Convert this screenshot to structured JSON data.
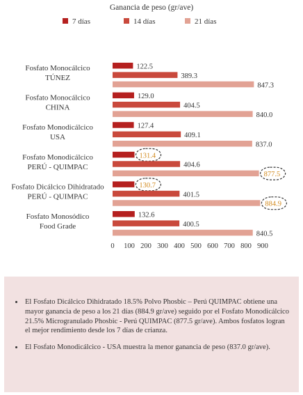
{
  "chart_data": {
    "type": "bar",
    "orientation": "horizontal",
    "title": "Ganancia de peso (gr/ave)",
    "categories": [
      [
        "Fosfato Monocálcico",
        "TÚNEZ"
      ],
      [
        "Fosfato Monocálcico",
        "CHINA"
      ],
      [
        "Fosfato Monodicálcico",
        "USA"
      ],
      [
        "Fosfato Monodicálcico",
        "PERÚ - QUIMPAC"
      ],
      [
        "Fosfato Dicálcico Dihidratado",
        "PERÚ - QUIMPAC"
      ],
      [
        "Fosfato Monosódico",
        "Food Grade"
      ]
    ],
    "series": [
      {
        "name": "7 días",
        "color": "#b5201f",
        "values": [
          122.5,
          129.0,
          127.4,
          131.4,
          130.7,
          132.6
        ]
      },
      {
        "name": "14 días",
        "color": "#c9493c",
        "values": [
          389.3,
          404.5,
          409.1,
          404.6,
          401.5,
          400.5
        ]
      },
      {
        "name": "21 días",
        "color": "#e2a294",
        "values": [
          847.3,
          840.0,
          837.0,
          877.5,
          884.9,
          840.5
        ]
      }
    ],
    "value_labels": [
      [
        "122.5",
        "389.3",
        "847.3"
      ],
      [
        "129.0",
        "404.5",
        "840.0"
      ],
      [
        "127.4",
        "409.1",
        "837.0"
      ],
      [
        "131.4",
        "404.6",
        "877.5"
      ],
      [
        "130.7",
        "401.5",
        "884.9"
      ],
      [
        "132.6",
        "400.5",
        "840.5"
      ]
    ],
    "highlighted": [
      [
        3,
        0
      ],
      [
        3,
        2
      ],
      [
        4,
        0
      ],
      [
        4,
        2
      ]
    ],
    "highlight_color": "#d28a1e",
    "xlim": [
      0,
      900
    ],
    "xticks": [
      0,
      100,
      200,
      300,
      400,
      500,
      600,
      700,
      800,
      900
    ],
    "legend_position": "top",
    "grid": false
  },
  "notes": [
    "El Fosfato Dicálcico Dihidratado 18.5% Polvo Phosbic – Perú QUIMPAC obtiene una mayor ganancia de peso a los 21 días (884.9 gr/ave) seguido por el Fosfato Monodicálcico 21.5% Microgranulado Phosbic - Perú QUIMPAC (877.5 gr/ave). Ambos fosfatos logran el mejor rendimiento desde los 7 días de crianza.",
    "El Fosfato Monodicálcico - USA muestra la menor ganancia de peso (837.0 gr/ave)."
  ]
}
